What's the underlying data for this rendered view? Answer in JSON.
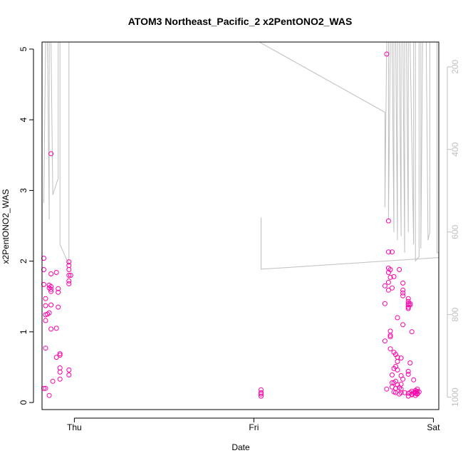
{
  "chart_data": {
    "type": "scatter",
    "title": "ATOM3 Northeast_Pacific_2 x2PentONO2_WAS",
    "xlabel": "Date",
    "ylabel": "x2PentONO2_WAS",
    "x_ticks": [
      "Thu",
      "Fri",
      "Sat"
    ],
    "xlim": [
      -0.18,
      2.03
    ],
    "ylim": [
      -0.1,
      5.1
    ],
    "y_ticks": [
      0,
      1,
      2,
      3,
      4,
      5
    ],
    "y2_ticks": [
      200,
      400,
      600,
      800,
      1000
    ],
    "y2lim": [
      1030,
      140
    ],
    "y2_reversed": true,
    "grid": false,
    "colors": {
      "points": "#ff00aa",
      "line": "#bfbfbf",
      "axis": "#000000"
    },
    "series": [
      {
        "type": "scatter",
        "points": [
          [
            -0.17,
            0.2
          ],
          [
            -0.17,
            2.04
          ],
          [
            -0.17,
            1.88
          ],
          [
            -0.17,
            1.67
          ],
          [
            -0.16,
            1.47
          ],
          [
            -0.16,
            1.37
          ],
          [
            -0.16,
            1.24
          ],
          [
            -0.16,
            1.16
          ],
          [
            -0.16,
            0.77
          ],
          [
            -0.16,
            0.2
          ],
          [
            -0.15,
            1.25
          ],
          [
            -0.14,
            1.66
          ],
          [
            -0.14,
            1.62
          ],
          [
            -0.14,
            1.27
          ],
          [
            -0.14,
            0.1
          ],
          [
            -0.13,
            3.52
          ],
          [
            -0.13,
            1.82
          ],
          [
            -0.13,
            1.57
          ],
          [
            -0.13,
            1.6
          ],
          [
            -0.13,
            1.64
          ],
          [
            -0.13,
            1.38
          ],
          [
            -0.13,
            1.04
          ],
          [
            -0.12,
            0.3
          ],
          [
            -0.1,
            1.84
          ],
          [
            -0.1,
            1.05
          ],
          [
            -0.1,
            0.64
          ],
          [
            -0.09,
            1.61
          ],
          [
            -0.09,
            1.56
          ],
          [
            -0.09,
            1.35
          ],
          [
            -0.08,
            0.67
          ],
          [
            -0.08,
            0.69
          ],
          [
            -0.08,
            0.49
          ],
          [
            -0.08,
            0.43
          ],
          [
            -0.08,
            0.33
          ],
          [
            -0.03,
            1.99
          ],
          [
            -0.03,
            1.94
          ],
          [
            -0.03,
            1.88
          ],
          [
            -0.03,
            1.8
          ],
          [
            -0.03,
            1.72
          ],
          [
            -0.03,
            1.68
          ],
          [
            -0.02,
            1.8
          ],
          [
            -0.03,
            0.46
          ],
          [
            -0.03,
            0.39
          ],
          [
            1.04,
            0.14
          ],
          [
            1.04,
            0.18
          ],
          [
            1.04,
            0.12
          ],
          [
            1.04,
            0.09
          ],
          [
            1.73,
            1.4
          ],
          [
            1.73,
            1.65
          ],
          [
            1.73,
            0.87
          ],
          [
            1.74,
            0.19
          ],
          [
            1.74,
            4.93
          ],
          [
            1.75,
            2.57
          ],
          [
            1.75,
            2.13
          ],
          [
            1.75,
            1.9
          ],
          [
            1.75,
            1.84
          ],
          [
            1.75,
            1.7
          ],
          [
            1.75,
            1.59
          ],
          [
            1.76,
            1.88
          ],
          [
            1.76,
            1.77
          ],
          [
            1.76,
            1.01
          ],
          [
            1.76,
            0.95
          ],
          [
            1.76,
            0.93
          ],
          [
            1.76,
            0.76
          ],
          [
            1.77,
            2.13
          ],
          [
            1.77,
            1.62
          ],
          [
            1.77,
            0.28
          ],
          [
            1.77,
            0.22
          ],
          [
            1.77,
            0.39
          ],
          [
            1.78,
            1.78
          ],
          [
            1.78,
            0.71
          ],
          [
            1.78,
            0.48
          ],
          [
            1.78,
            0.28
          ],
          [
            1.78,
            0.15
          ],
          [
            1.79,
            0.68
          ],
          [
            1.79,
            0.51
          ],
          [
            1.79,
            0.3
          ],
          [
            1.79,
            0.2
          ],
          [
            1.79,
            0.14
          ],
          [
            1.8,
            0.64
          ],
          [
            1.8,
            0.58
          ],
          [
            1.8,
            0.46
          ],
          [
            1.8,
            1.2
          ],
          [
            1.8,
            0.25
          ],
          [
            1.81,
            0.12
          ],
          [
            1.81,
            0.21
          ],
          [
            1.81,
            1.88
          ],
          [
            1.82,
            0.63
          ],
          [
            1.82,
            0.38
          ],
          [
            1.82,
            0.19
          ],
          [
            1.82,
            0.14
          ],
          [
            1.82,
            0.26
          ],
          [
            1.83,
            1.69
          ],
          [
            1.83,
            1.59
          ],
          [
            1.83,
            1.55
          ],
          [
            1.83,
            1.51
          ],
          [
            1.83,
            1.1
          ],
          [
            1.83,
            0.33
          ],
          [
            1.84,
            0.14
          ],
          [
            1.86,
            0.13
          ],
          [
            1.86,
            0.09
          ],
          [
            1.86,
            0.44
          ],
          [
            1.86,
            0.4
          ],
          [
            1.86,
            1.47
          ],
          [
            1.86,
            1.43
          ],
          [
            1.86,
            1.4
          ],
          [
            1.86,
            1.38
          ],
          [
            1.86,
            1.35
          ],
          [
            1.86,
            1.33
          ],
          [
            1.87,
            1.38
          ],
          [
            1.87,
            1.4
          ],
          [
            1.87,
            0.56
          ],
          [
            1.87,
            0.14
          ],
          [
            1.88,
            1.0
          ],
          [
            1.88,
            0.12
          ],
          [
            1.88,
            0.16
          ],
          [
            1.88,
            0.11
          ],
          [
            1.89,
            0.14
          ],
          [
            1.89,
            0.32
          ],
          [
            1.9,
            0.1
          ],
          [
            1.9,
            0.13
          ],
          [
            1.9,
            0.17
          ],
          [
            1.9,
            0.15
          ],
          [
            1.91,
            0.19
          ],
          [
            1.91,
            0.16
          ],
          [
            1.91,
            0.13
          ],
          [
            1.91,
            0.12
          ],
          [
            1.92,
            0.15
          ]
        ]
      },
      {
        "type": "line",
        "axis": "right",
        "points": [
          [
            -0.17,
            530
          ],
          [
            -0.16,
            140
          ],
          [
            -0.15,
            140
          ],
          [
            -0.14,
            570
          ],
          [
            -0.14,
            140
          ],
          [
            -0.13,
            140
          ],
          [
            -0.12,
            510
          ],
          [
            -0.09,
            470
          ],
          [
            -0.09,
            140
          ],
          [
            -0.08,
            140
          ],
          [
            -0.08,
            630
          ],
          [
            -0.03,
            680
          ],
          [
            -0.03,
            140
          ],
          [
            -0.02,
            140
          ],
          [
            0.06,
            140
          ],
          [
            0.45,
            140
          ],
          [
            0.6,
            140
          ],
          [
            1.03,
            140
          ],
          [
            1.73,
            310
          ],
          [
            1.73,
            540
          ],
          [
            1.74,
            140
          ],
          [
            1.75,
            140
          ],
          [
            1.75,
            570
          ],
          [
            1.76,
            140
          ],
          [
            1.77,
            140
          ],
          [
            1.78,
            600
          ],
          [
            1.78,
            140
          ],
          [
            1.79,
            140
          ],
          [
            1.8,
            620
          ],
          [
            1.8,
            140
          ],
          [
            1.81,
            140
          ],
          [
            1.82,
            610
          ],
          [
            1.82,
            140
          ],
          [
            1.83,
            140
          ],
          [
            1.84,
            650
          ],
          [
            1.84,
            140
          ],
          [
            1.85,
            140
          ],
          [
            1.86,
            600
          ],
          [
            1.86,
            140
          ],
          [
            1.87,
            140
          ],
          [
            1.89,
            630
          ],
          [
            1.89,
            140
          ],
          [
            1.9,
            140
          ],
          [
            1.9,
            670
          ],
          [
            1.92,
            660
          ],
          [
            1.92,
            140
          ],
          [
            1.93,
            140
          ],
          [
            1.93,
            640
          ],
          [
            1.94,
            140
          ],
          [
            1.96,
            140
          ],
          [
            1.97,
            620
          ],
          [
            1.98,
            600
          ],
          [
            1.98,
            140
          ],
          [
            2.02,
            140
          ],
          [
            2.02,
            650
          ],
          [
            2.03,
            650
          ]
        ]
      },
      {
        "type": "line",
        "axis": "right",
        "points": [
          [
            1.04,
            565
          ],
          [
            1.04,
            690
          ],
          [
            2.03,
            662
          ]
        ]
      }
    ]
  }
}
